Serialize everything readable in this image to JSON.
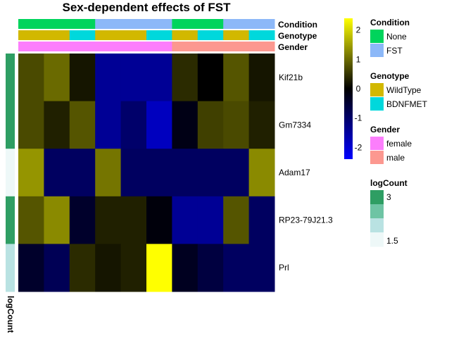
{
  "chart_data": {
    "type": "heatmap",
    "title": "Sex-dependent effects of FST",
    "rows": [
      "Kif21b",
      "Gm7334",
      "Adam17",
      "RP23-79J21.3",
      "Prl"
    ],
    "n_columns": 10,
    "values": [
      [
        0.7,
        1.0,
        0.2,
        -1.4,
        -1.4,
        -1.4,
        0.4,
        0.0,
        0.8,
        0.2
      ],
      [
        0.7,
        0.3,
        0.8,
        -1.4,
        -1.0,
        -1.8,
        -0.2,
        0.6,
        0.7,
        0.3
      ],
      [
        1.4,
        -0.9,
        -0.9,
        1.1,
        -0.9,
        -0.9,
        -0.9,
        -0.9,
        -0.9,
        1.3
      ],
      [
        0.8,
        1.3,
        -0.4,
        0.3,
        0.3,
        -0.1,
        -1.4,
        -1.4,
        0.8,
        -0.9
      ],
      [
        -0.4,
        -0.8,
        0.4,
        0.2,
        0.3,
        2.4,
        -0.3,
        -0.6,
        -0.9,
        -0.9
      ]
    ],
    "color_scale": {
      "min": -2.4,
      "max": 2.4,
      "stops": [
        {
          "value": -2.4,
          "color": "#0000ff"
        },
        {
          "value": 0,
          "color": "#000000"
        },
        {
          "value": 2.4,
          "color": "#ffff00"
        }
      ],
      "ticks": [
        2,
        1,
        0,
        -1,
        -2
      ]
    },
    "column_annotations": [
      {
        "name": "Condition",
        "values": [
          "None",
          "None",
          "None",
          "FST",
          "FST",
          "FST",
          "None",
          "None",
          "FST",
          "FST"
        ]
      },
      {
        "name": "Genotype",
        "values": [
          "WildType",
          "WildType",
          "BDNFMET",
          "WildType",
          "WildType",
          "BDNFMET",
          "WildType",
          "BDNFMET",
          "WildType",
          "BDNFMET"
        ]
      },
      {
        "name": "Gender",
        "values": [
          "female",
          "female",
          "female",
          "female",
          "female",
          "female",
          "male",
          "male",
          "male",
          "male"
        ]
      }
    ],
    "row_annotation": {
      "name": "logCount",
      "values": [
        3.0,
        3.0,
        1.4,
        3.0,
        1.9
      ],
      "colors": [
        "#2e9e63",
        "#2e9e63",
        "#eef8f8",
        "#2e9e63",
        "#b9e2e2"
      ]
    },
    "legends": [
      {
        "title": "Condition",
        "items": [
          {
            "label": "None",
            "color": "#00d45c"
          },
          {
            "label": "FST",
            "color": "#8cb8f8"
          }
        ]
      },
      {
        "title": "Genotype",
        "items": [
          {
            "label": "WildType",
            "color": "#d2b800"
          },
          {
            "label": "BDNFMET",
            "color": "#00d8dc"
          }
        ]
      },
      {
        "title": "Gender",
        "items": [
          {
            "label": "female",
            "color": "#fc7efc"
          },
          {
            "label": "male",
            "color": "#fc9890"
          }
        ]
      },
      {
        "title": "logCount",
        "tick_labels": [
          "3",
          "1.5"
        ],
        "colors": [
          "#2e9e63",
          "#6ec4a4",
          "#b9e2e2",
          "#eef8f8"
        ]
      }
    ]
  }
}
